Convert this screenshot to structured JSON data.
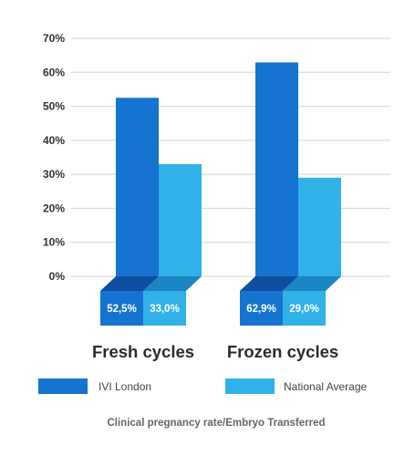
{
  "chart_data": {
    "type": "bar",
    "categories": [
      "Fresh cycles",
      "Frozen cycles"
    ],
    "series": [
      {
        "name": "IVI London",
        "values": [
          52.5,
          62.9
        ],
        "labels": [
          "52,5%",
          "62,9%"
        ],
        "color": "#1574cf"
      },
      {
        "name": "National Average",
        "values": [
          33.0,
          29.0
        ],
        "labels": [
          "33,0%",
          "29,0%"
        ],
        "color": "#30b2e8"
      }
    ],
    "ylim": [
      0,
      70
    ],
    "yticks": [
      0,
      10,
      20,
      30,
      40,
      50,
      60,
      70
    ],
    "ytick_labels": [
      "0%",
      "10%",
      "20%",
      "30%",
      "40%",
      "50%",
      "60%",
      "70%"
    ],
    "grid": true,
    "legend_position": "bottom",
    "caption": "Clinical pregnancy rate/Embryo Transferred",
    "colors": {
      "base_top_dark": "#0d4ea0",
      "base_top_light": "#1a86c3",
      "grid": "#d5d5d5"
    }
  }
}
